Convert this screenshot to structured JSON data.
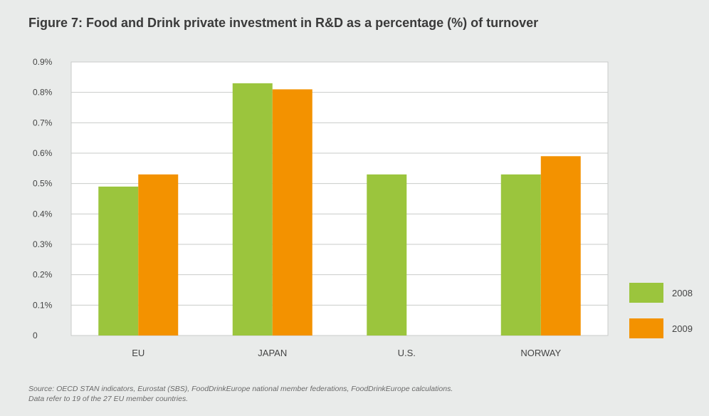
{
  "chart_data": {
    "type": "bar",
    "title": "Figure 7: Food and Drink private investment in R&D as a percentage (%) of turnover",
    "categories": [
      "EU",
      "JAPAN",
      "U.S.",
      "NORWAY"
    ],
    "series": [
      {
        "name": "2008",
        "values": [
          0.49,
          0.83,
          0.53,
          0.53
        ],
        "color": "#9bc53d"
      },
      {
        "name": "2009",
        "values": [
          0.53,
          0.81,
          null,
          0.59
        ],
        "color": "#f39200"
      }
    ],
    "ylim": [
      0,
      0.9
    ],
    "yticks": [
      {
        "value": 0,
        "label": "0"
      },
      {
        "value": 0.1,
        "label": "0.1%"
      },
      {
        "value": 0.2,
        "label": "0.2%"
      },
      {
        "value": 0.3,
        "label": "0.3%"
      },
      {
        "value": 0.4,
        "label": "0.4%"
      },
      {
        "value": 0.5,
        "label": "0.5%"
      },
      {
        "value": 0.6,
        "label": "0.6%"
      },
      {
        "value": 0.7,
        "label": "0.7%"
      },
      {
        "value": 0.8,
        "label": "0.8%"
      },
      {
        "value": 0.9,
        "label": "0.9%"
      }
    ],
    "xlabel": "",
    "ylabel": "",
    "grid": true,
    "legend_position": "bottom-right",
    "plot_background": "#ffffff",
    "grid_color": "#c9cbca"
  },
  "source_lines": [
    "Source: OECD STAN indicators, Eurostat (SBS), FoodDrinkEurope national member federations, FoodDrinkEurope calculations.",
    "Data refer to 19 of the 27 EU member countries."
  ]
}
